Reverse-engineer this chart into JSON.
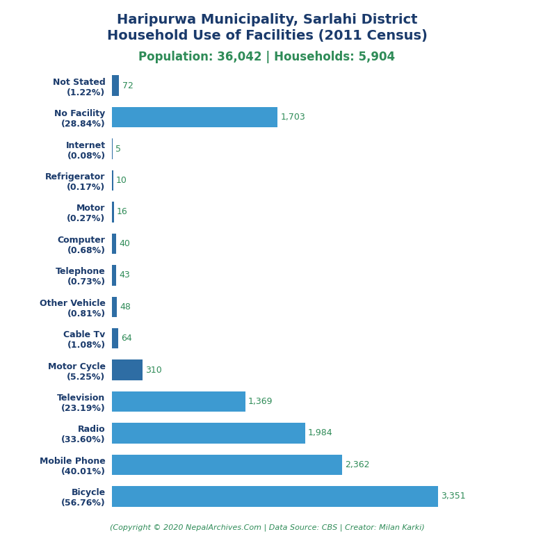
{
  "title_line1": "Haripurwa Municipality, Sarlahi District",
  "title_line2": "Household Use of Facilities (2011 Census)",
  "subtitle": "Population: 36,042 | Households: 5,904",
  "footer": "(Copyright © 2020 NepalArchives.Com | Data Source: CBS | Creator: Milan Karki)",
  "categories": [
    "Bicycle\n(56.76%)",
    "Mobile Phone\n(40.01%)",
    "Radio\n(33.60%)",
    "Television\n(23.19%)",
    "Motor Cycle\n(5.25%)",
    "Cable Tv\n(1.08%)",
    "Other Vehicle\n(0.81%)",
    "Telephone\n(0.73%)",
    "Computer\n(0.68%)",
    "Motor\n(0.27%)",
    "Refrigerator\n(0.17%)",
    "Internet\n(0.08%)",
    "No Facility\n(28.84%)",
    "Not Stated\n(1.22%)"
  ],
  "values": [
    3351,
    2362,
    1984,
    1369,
    310,
    64,
    48,
    43,
    40,
    16,
    10,
    5,
    1703,
    72
  ],
  "value_labels": [
    "3,351",
    "2,362",
    "1,984",
    "1,369",
    "310",
    "64",
    "48",
    "43",
    "40",
    "16",
    "10",
    "5",
    "1,703",
    "72"
  ],
  "bar_color_dark": "#2e6da4",
  "bar_color_light": "#3d9ad1",
  "title_color": "#1a3a6b",
  "subtitle_color": "#2e8b57",
  "value_color": "#2e8b57",
  "footer_color": "#2e8b57",
  "background_color": "#ffffff",
  "title_fontsize": 14,
  "subtitle_fontsize": 12,
  "label_fontsize": 9,
  "value_fontsize": 9,
  "footer_fontsize": 8,
  "xlim": [
    0,
    3900
  ],
  "small_threshold": 310
}
